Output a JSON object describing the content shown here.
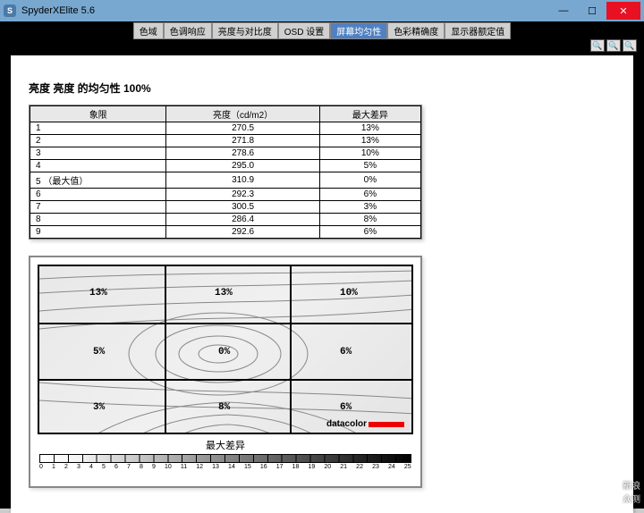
{
  "window": {
    "title": "SpyderXElite 5.6"
  },
  "tabs": [
    "色域",
    "色调响应",
    "亮度与对比度",
    "OSD 设置",
    "屏幕均匀性",
    "色彩精确度",
    "显示器额定值"
  ],
  "activeTab": 4,
  "heading": "亮度 亮度 的均匀性 100%",
  "table": {
    "columns": [
      "象限",
      "亮度（cd/m2）",
      "最大差异"
    ],
    "rows": [
      [
        "1",
        "270.5",
        "13%"
      ],
      [
        "2",
        "271.8",
        "13%"
      ],
      [
        "3",
        "278.6",
        "10%"
      ],
      [
        "4",
        "295.0",
        "5%"
      ],
      [
        "5 （最大值）",
        "310.9",
        "0%"
      ],
      [
        "6",
        "292.3",
        "6%"
      ],
      [
        "7",
        "300.5",
        "3%"
      ],
      [
        "8",
        "286.4",
        "8%"
      ],
      [
        "9",
        "292.6",
        "6%"
      ]
    ]
  },
  "diagram": {
    "cells": [
      "13%",
      "13%",
      "10%",
      "5%",
      "0%",
      "6%",
      "3%",
      "8%",
      "6%"
    ],
    "label": "最大差异",
    "logo": "datacolor",
    "ticks": [
      "0",
      "1",
      "2",
      "3",
      "4",
      "5",
      "6",
      "7",
      "8",
      "9",
      "10",
      "11",
      "12",
      "13",
      "14",
      "15",
      "16",
      "17",
      "18",
      "19",
      "20",
      "21",
      "22",
      "23",
      "24",
      "25"
    ],
    "contour_color": "#888888",
    "grid_color": "#000000",
    "bg_gradient": [
      "#e8e8e8",
      "#f0f0f0",
      "#e4e4e4"
    ]
  },
  "watermark": {
    "l1": "新浪",
    "l2": "众测"
  }
}
